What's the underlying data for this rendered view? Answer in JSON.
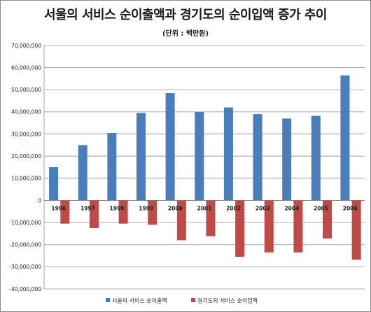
{
  "chart_data": {
    "type": "bar",
    "title": "서울의 서비스 순이출액과 경기도의 순이입액 증가 추이",
    "subtitle": "(단위 : 백만원)",
    "categories": [
      "1996",
      "1997",
      "1998",
      "1999",
      "2000",
      "2001",
      "2002",
      "2003",
      "2004",
      "2005",
      "2006"
    ],
    "series": [
      {
        "name": "서울의 서비스 순이출액",
        "color": "#4a7ebb",
        "values": [
          15000000,
          25000000,
          30500000,
          39500000,
          48500000,
          40000000,
          42000000,
          39000000,
          37000000,
          38200000,
          56500000
        ]
      },
      {
        "name": "경기도의 서비스 순이입액",
        "color": "#be4b48",
        "values": [
          -10500000,
          -12500000,
          -10500000,
          -11000000,
          -18000000,
          -16200000,
          -25500000,
          -23500000,
          -23500000,
          -17200000,
          -26800000
        ]
      }
    ],
    "ylim": [
      -40000000,
      70000000
    ],
    "yticks": [
      70000000,
      60000000,
      50000000,
      40000000,
      30000000,
      20000000,
      10000000,
      0,
      -10000000,
      -20000000,
      -30000000,
      -40000000
    ],
    "ytick_labels": [
      "70,000,000",
      "60,000,000",
      "50,000,000",
      "40,000,000",
      "30,000,000",
      "20,000,000",
      "10,000,000",
      "0",
      "-10,000,000",
      "-20,000,000",
      "-30,000,000",
      "-40,000,000"
    ],
    "xlabel": "",
    "ylabel": "",
    "grid": true,
    "legend_position": "bottom"
  }
}
